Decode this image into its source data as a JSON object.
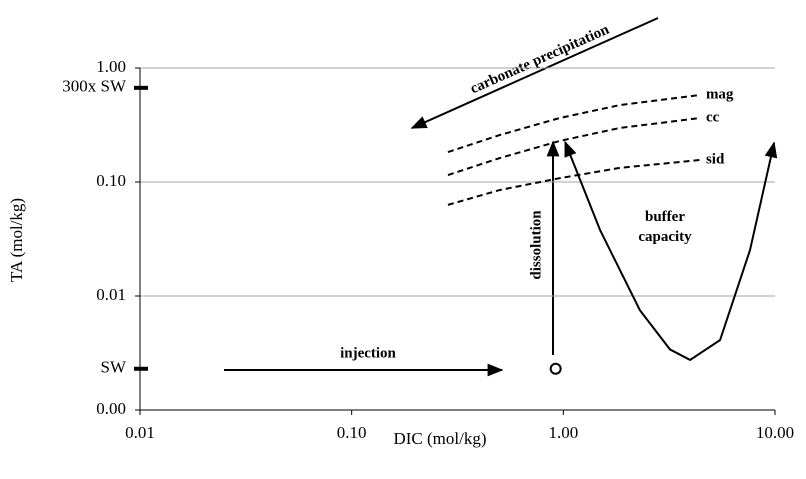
{
  "chart_data": {
    "type": "line",
    "x_label": "DIC (mol/kg)",
    "y_label": "TA (mol/kg)",
    "log_x": true,
    "log_y": true,
    "grid": true,
    "xlim": [
      0.01,
      10
    ],
    "ylim": [
      0.001,
      1
    ],
    "xticks": [
      {
        "value": 0.01,
        "label": "0.01"
      },
      {
        "value": 0.1,
        "label": "0.10"
      },
      {
        "value": 1,
        "label": "1.00"
      },
      {
        "value": 10,
        "label": "10.00"
      }
    ],
    "yticks": [
      {
        "value": 0.001,
        "label": "0.00"
      },
      {
        "value": 0.01,
        "label": "0.01"
      },
      {
        "value": 0.1,
        "label": "0.10"
      },
      {
        "value": 1,
        "label": "1.00"
      }
    ],
    "side_labels": [
      {
        "value": 0.67,
        "label": "300x SW"
      },
      {
        "value": 0.0023,
        "label": "SW"
      }
    ],
    "series": [
      {
        "name": "mag",
        "color": "#000000",
        "dashed": true,
        "x": [
          0.285,
          0.5,
          0.96,
          1.85,
          4.42
        ],
        "values": [
          0.183,
          0.258,
          0.364,
          0.473,
          0.58
        ]
      },
      {
        "name": "cc",
        "color": "#000000",
        "dashed": true,
        "x": [
          0.285,
          0.5,
          0.96,
          1.85,
          4.42
        ],
        "values": [
          0.115,
          0.162,
          0.229,
          0.298,
          0.364
        ]
      },
      {
        "name": "sid",
        "color": "#000000",
        "dashed": true,
        "x": [
          0.285,
          0.5,
          0.96,
          1.85,
          4.42
        ],
        "values": [
          0.063,
          0.085,
          0.108,
          0.133,
          0.156
        ]
      },
      {
        "color": "#000000",
        "dashed": false,
        "x": [
          1.02,
          1.49,
          2.3,
          3.19,
          3.97,
          5.5,
          7.62,
          9.9
        ],
        "values": [
          0.224,
          0.038,
          0.0075,
          0.0034,
          0.00275,
          0.0041,
          0.0253,
          0.22
        ]
      }
    ],
    "point": {
      "x": 0.92,
      "y": 0.0023
    },
    "annotations": [
      "carbonate precipitation",
      "dissolution",
      "buffer capacity",
      "injection"
    ]
  }
}
